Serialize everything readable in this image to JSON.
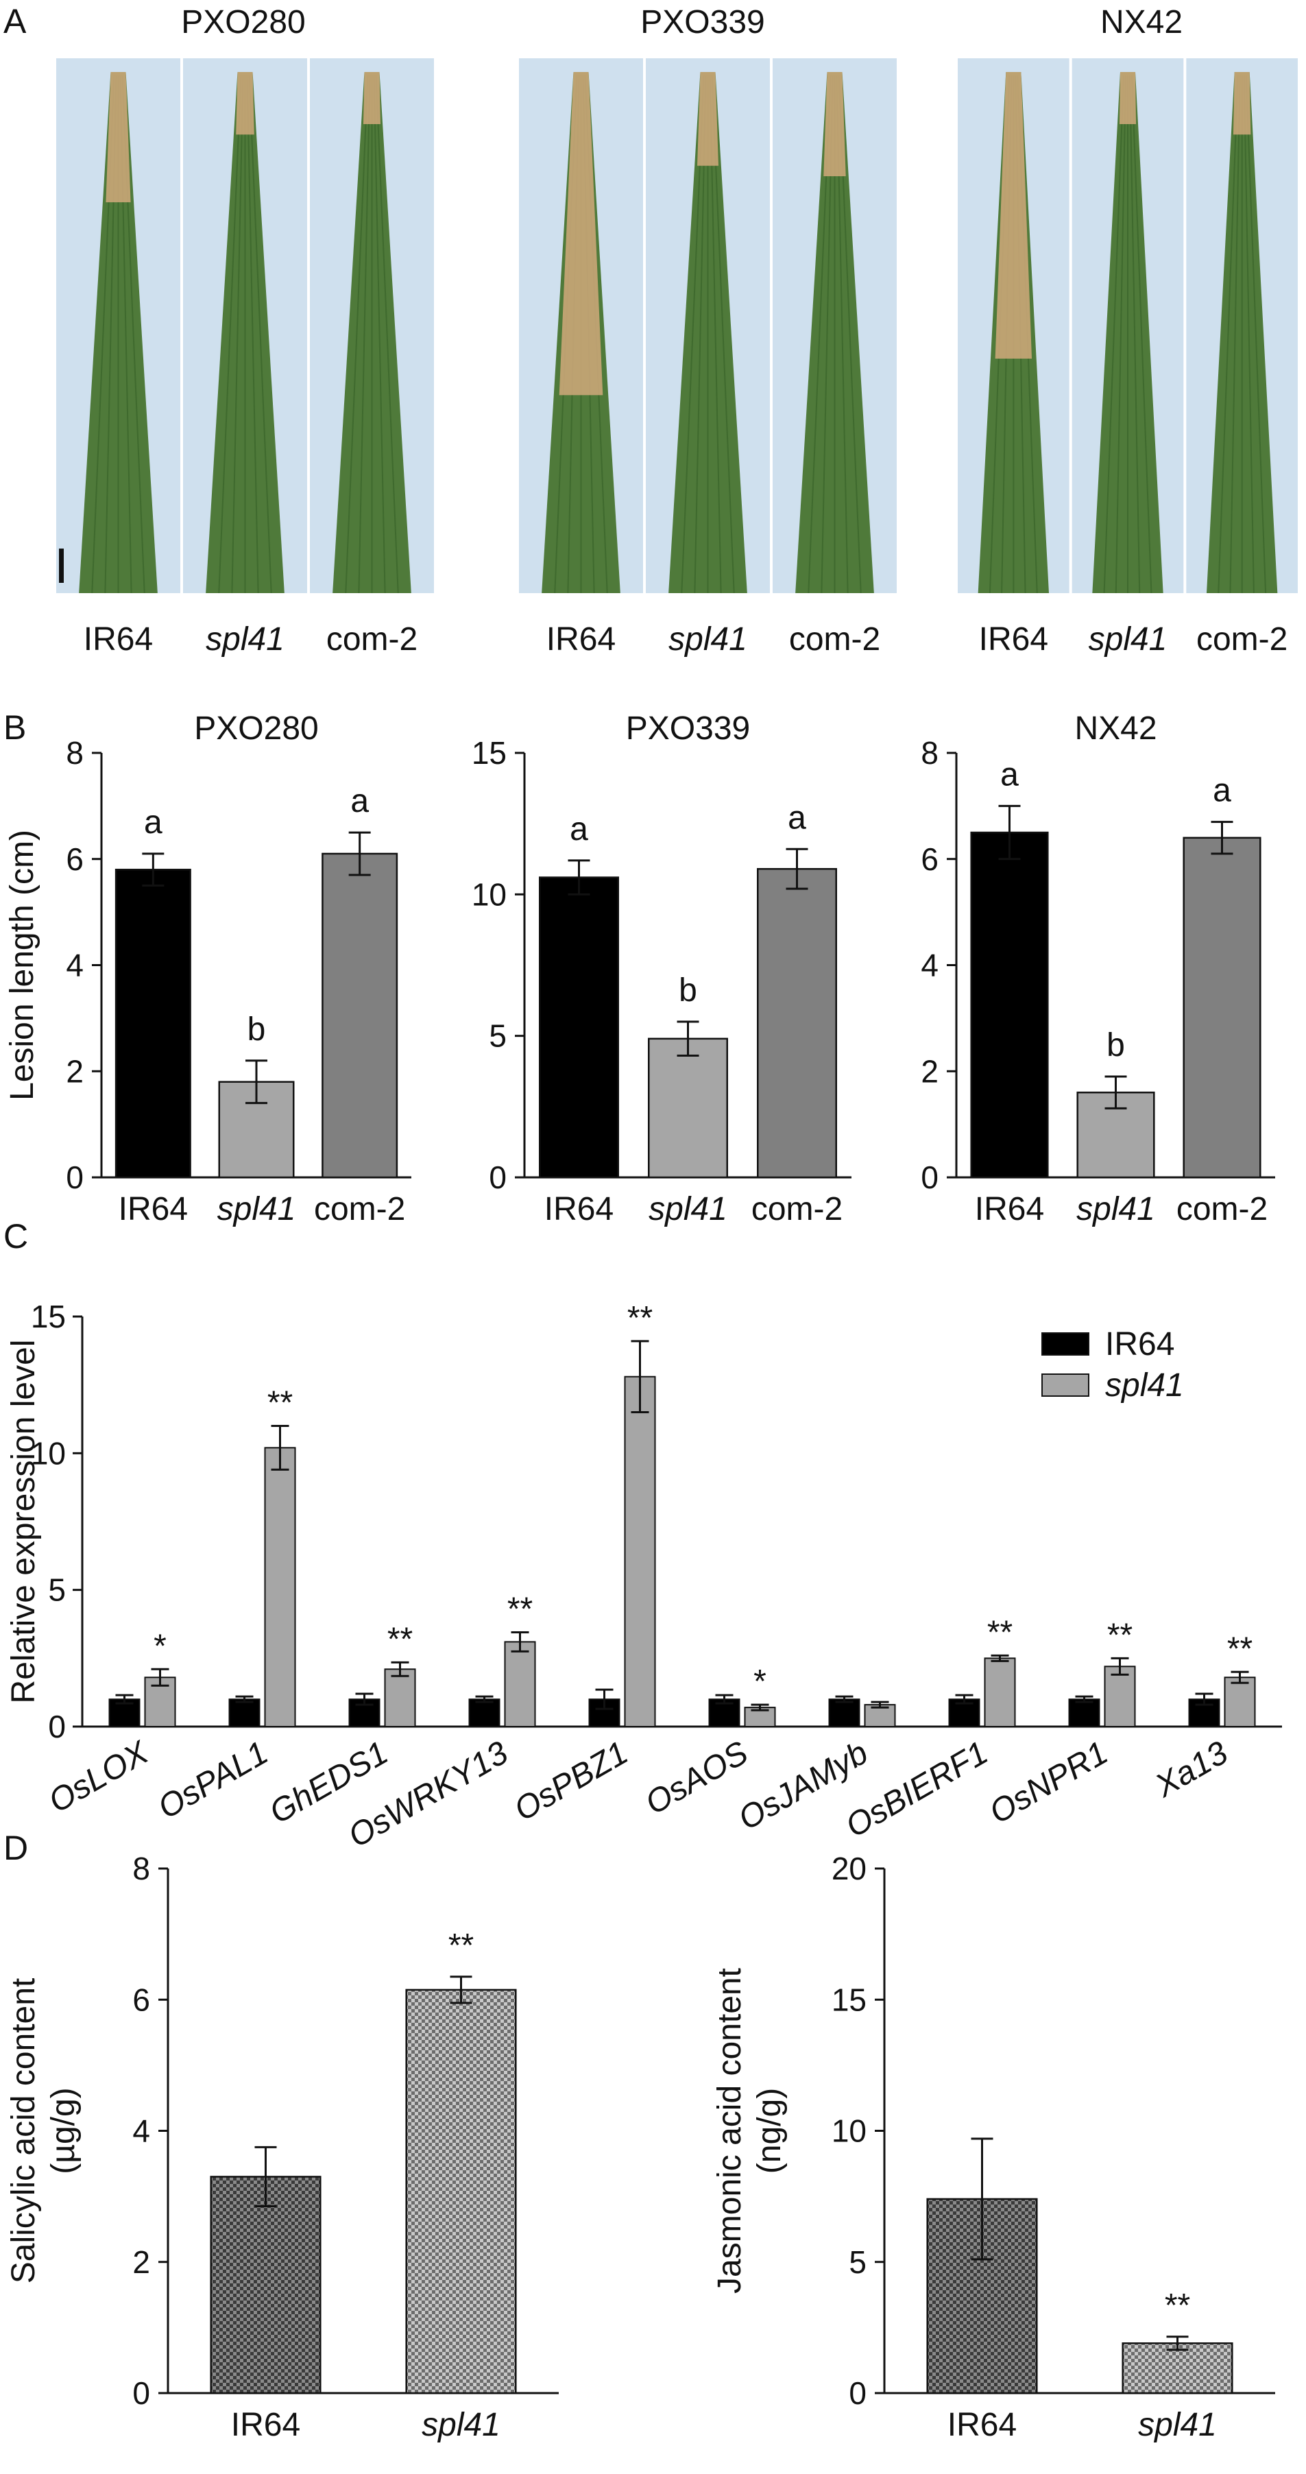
{
  "panel_labels": [
    "A",
    "B",
    "C",
    "D"
  ],
  "panel_a": {
    "strains": [
      "PXO280",
      "PXO339",
      "NX42"
    ],
    "leaf_labels": [
      "IR64",
      "spl41",
      "com-2"
    ],
    "colors": {
      "background": "#cfe0ee",
      "leaf_green": "#4f7a3a",
      "lesion": "#c9a678",
      "scale_bar": "#111111"
    }
  },
  "chart_data": [
    {
      "panel": "B",
      "type": "bar",
      "title": "PXO280",
      "ylabel": "Lesion length (cm)",
      "ylim": [
        0,
        8
      ],
      "yticks": [
        0,
        2,
        4,
        6,
        8
      ],
      "categories": [
        "IR64",
        "spl41",
        "com-2"
      ],
      "values": [
        5.8,
        1.8,
        6.1
      ],
      "errors": [
        0.3,
        0.4,
        0.4
      ],
      "letters": [
        "a",
        "b",
        "a"
      ],
      "colors": [
        "#000000",
        "#a6a6a6",
        "#808080"
      ]
    },
    {
      "panel": "B",
      "type": "bar",
      "title": "PXO339",
      "ylabel": "",
      "ylim": [
        0,
        15
      ],
      "yticks": [
        0,
        5,
        10,
        15
      ],
      "categories": [
        "IR64",
        "spl41",
        "com-2"
      ],
      "values": [
        10.6,
        4.9,
        10.9
      ],
      "errors": [
        0.6,
        0.6,
        0.7
      ],
      "letters": [
        "a",
        "b",
        "a"
      ],
      "colors": [
        "#000000",
        "#a6a6a6",
        "#808080"
      ]
    },
    {
      "panel": "B",
      "type": "bar",
      "title": "NX42",
      "ylabel": "",
      "ylim": [
        0,
        8
      ],
      "yticks": [
        0,
        2,
        4,
        6,
        8
      ],
      "categories": [
        "IR64",
        "spl41",
        "com-2"
      ],
      "values": [
        6.5,
        1.6,
        6.4
      ],
      "errors": [
        0.5,
        0.3,
        0.3
      ],
      "letters": [
        "a",
        "b",
        "a"
      ],
      "colors": [
        "#000000",
        "#a6a6a6",
        "#808080"
      ]
    },
    {
      "panel": "C",
      "type": "bar",
      "title": "",
      "ylabel": "Relative expression level",
      "ylim": [
        0,
        15
      ],
      "yticks": [
        0,
        5,
        10,
        15
      ],
      "categories": [
        "OsLOX",
        "OsPAL1",
        "GhEDS1",
        "OsWRKY13",
        "OsPBZ1",
        "OsAOS",
        "OsJAMyb",
        "OsBIERF1",
        "OsNPR1",
        "Xa13"
      ],
      "series": [
        {
          "name": "IR64",
          "values": [
            1.0,
            1.0,
            1.0,
            1.0,
            1.0,
            1.0,
            1.0,
            1.0,
            1.0,
            1.0
          ],
          "errors": [
            0.15,
            0.1,
            0.2,
            0.1,
            0.35,
            0.15,
            0.1,
            0.15,
            0.1,
            0.2
          ],
          "color": "#000000"
        },
        {
          "name": "spl41",
          "values": [
            1.8,
            10.2,
            2.1,
            3.1,
            12.8,
            0.7,
            0.8,
            2.5,
            2.2,
            1.8
          ],
          "errors": [
            0.3,
            0.8,
            0.25,
            0.35,
            1.3,
            0.1,
            0.1,
            0.1,
            0.3,
            0.2
          ],
          "color": "#a6a6a6"
        }
      ],
      "significance": [
        "*",
        "**",
        "**",
        "**",
        "**",
        "*",
        "",
        "**",
        "**",
        "**"
      ],
      "legend_position": "top-right"
    },
    {
      "panel": "D",
      "type": "bar",
      "title": "",
      "ylabel": "Salicylic acid content (µg/g)",
      "ylabel_lines": [
        "Salicylic acid content",
        "(µg/g)"
      ],
      "ylim": [
        0,
        8
      ],
      "yticks": [
        0,
        2,
        4,
        6,
        8
      ],
      "categories": [
        "IR64",
        "spl41"
      ],
      "values": [
        3.3,
        6.15
      ],
      "errors": [
        0.45,
        0.2
      ],
      "significance": [
        "",
        "**"
      ],
      "pattern": "checkered"
    },
    {
      "panel": "D",
      "type": "bar",
      "title": "",
      "ylabel": "Jasmonic acid content (ng/g)",
      "ylabel_lines": [
        "Jasmonic acid content",
        "(ng/g)"
      ],
      "ylim": [
        0,
        20
      ],
      "yticks": [
        0,
        5,
        10,
        15,
        20
      ],
      "categories": [
        "IR64",
        "spl41"
      ],
      "values": [
        7.4,
        1.9
      ],
      "errors": [
        2.3,
        0.25
      ],
      "significance": [
        "",
        "**"
      ],
      "pattern": "checkered"
    }
  ]
}
